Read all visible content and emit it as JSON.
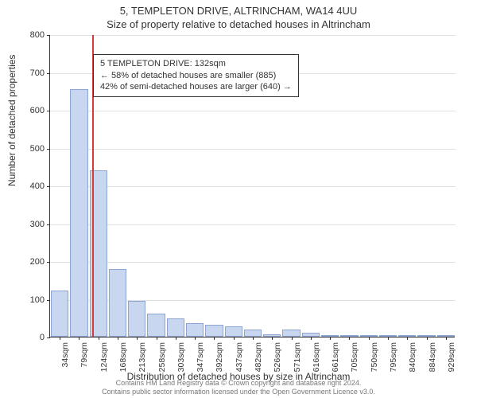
{
  "title": "5, TEMPLETON DRIVE, ALTRINCHAM, WA14 4UU",
  "subtitle": "Size of property relative to detached houses in Altrincham",
  "y_axis": {
    "label": "Number of detached properties",
    "min": 0,
    "max": 800,
    "ticks": [
      0,
      100,
      200,
      300,
      400,
      500,
      600,
      700,
      800
    ]
  },
  "x_axis": {
    "label": "Distribution of detached houses by size in Altrincham",
    "tick_labels": [
      "34sqm",
      "79sqm",
      "124sqm",
      "168sqm",
      "213sqm",
      "258sqm",
      "303sqm",
      "347sqm",
      "392sqm",
      "437sqm",
      "482sqm",
      "526sqm",
      "571sqm",
      "616sqm",
      "661sqm",
      "705sqm",
      "750sqm",
      "795sqm",
      "840sqm",
      "884sqm",
      "929sqm"
    ]
  },
  "bars": {
    "values": [
      122,
      655,
      440,
      180,
      95,
      62,
      48,
      35,
      32,
      28,
      18,
      6,
      20,
      10,
      5,
      3,
      2,
      3,
      2,
      1,
      2
    ]
  },
  "reference": {
    "bin_index": 2,
    "fraction_within_bin": 0.18,
    "color": "#d33c3c"
  },
  "annotation": {
    "line1": "5 TEMPLETON DRIVE: 132sqm",
    "line2": "← 58% of detached houses are smaller (885)",
    "line3": "42% of semi-detached houses are larger (640) →"
  },
  "style": {
    "bar_fill": "#c9d6ef",
    "bar_border": "#8fa5d1",
    "grid": "#e0e0e0",
    "axis": "#333333",
    "bg": "#ffffff",
    "title_fontsize": 13,
    "axis_fontsize": 12,
    "tick_fontsize": 11
  },
  "footer": {
    "line1": "Contains HM Land Registry data © Crown copyright and database right 2024.",
    "line2": "Contains public sector information licensed under the Open Government Licence v3.0."
  }
}
